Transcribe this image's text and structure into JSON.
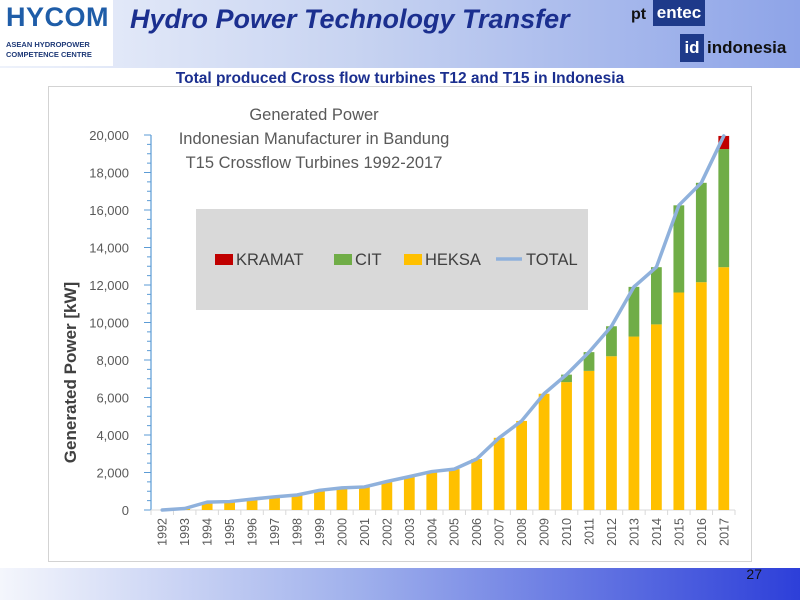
{
  "header": {
    "logo_text": "HYCOM",
    "logo_subline1": "ASEAN HYDROPOWER",
    "logo_subline2": "COMPETENCE CENTRE",
    "title": "Hydro Power Technology Transfer",
    "partner_logo": {
      "pt": "pt",
      "entec": "entec",
      "id": "id",
      "country": "indonesia"
    }
  },
  "subtitle": "Total produced Cross flow turbines T12 and T15 in Indonesia",
  "page_number": "27",
  "colors": {
    "kramat": "#c00000",
    "cit": "#70ad47",
    "heksa": "#ffc000",
    "total": "#8fb1dc"
  },
  "chart_data": {
    "type": "bar",
    "stacked": true,
    "title_lines": [
      "Generated Power",
      "Indonesian Manufacturer in Bandung",
      "T15 Crossflow Turbines 1992-2017"
    ],
    "ylabel": "Generated Power [kW]",
    "xlabel": "",
    "ylim": [
      0,
      20000
    ],
    "yticks": [
      0,
      2000,
      4000,
      6000,
      8000,
      10000,
      12000,
      14000,
      16000,
      18000,
      20000
    ],
    "ytick_labels": [
      "0",
      "2,000",
      "4,000",
      "6,000",
      "8,000",
      "10,000",
      "12,000",
      "14,000",
      "16,000",
      "18,000",
      "20,000"
    ],
    "categories": [
      "1992",
      "1993",
      "1994",
      "1995",
      "1996",
      "1997",
      "1998",
      "1999",
      "2000",
      "2001",
      "2002",
      "2003",
      "2004",
      "2005",
      "2006",
      "2007",
      "2008",
      "2009",
      "2010",
      "2011",
      "2012",
      "2013",
      "2014",
      "2015",
      "2016",
      "2017"
    ],
    "series": [
      {
        "name": "HEKSA",
        "values": [
          0,
          80,
          420,
          450,
          580,
          700,
          800,
          1050,
          1180,
          1230,
          1520,
          1780,
          2050,
          2180,
          2720,
          3850,
          4750,
          6200,
          6820,
          7420,
          8200,
          9250,
          9900,
          11600,
          12150,
          12950
        ]
      },
      {
        "name": "CIT",
        "values": [
          0,
          0,
          0,
          0,
          0,
          0,
          0,
          0,
          0,
          0,
          0,
          0,
          0,
          0,
          0,
          0,
          0,
          0,
          400,
          1000,
          1600,
          2650,
          3050,
          4650,
          5300,
          6300
        ]
      },
      {
        "name": "KRAMAT",
        "values": [
          0,
          0,
          0,
          0,
          0,
          0,
          0,
          0,
          0,
          0,
          0,
          0,
          0,
          0,
          0,
          0,
          0,
          0,
          0,
          0,
          0,
          0,
          0,
          0,
          0,
          700
        ]
      }
    ],
    "total": {
      "name": "TOTAL",
      "values": [
        0,
        80,
        420,
        450,
        580,
        700,
        800,
        1050,
        1180,
        1230,
        1520,
        1780,
        2050,
        2180,
        2720,
        3850,
        4750,
        6200,
        7220,
        8420,
        9800,
        11900,
        12950,
        16250,
        17450,
        19950
      ]
    },
    "legend": [
      "KRAMAT",
      "CIT",
      "HEKSA",
      "TOTAL"
    ],
    "legend_position": "center-left",
    "grid": false
  }
}
